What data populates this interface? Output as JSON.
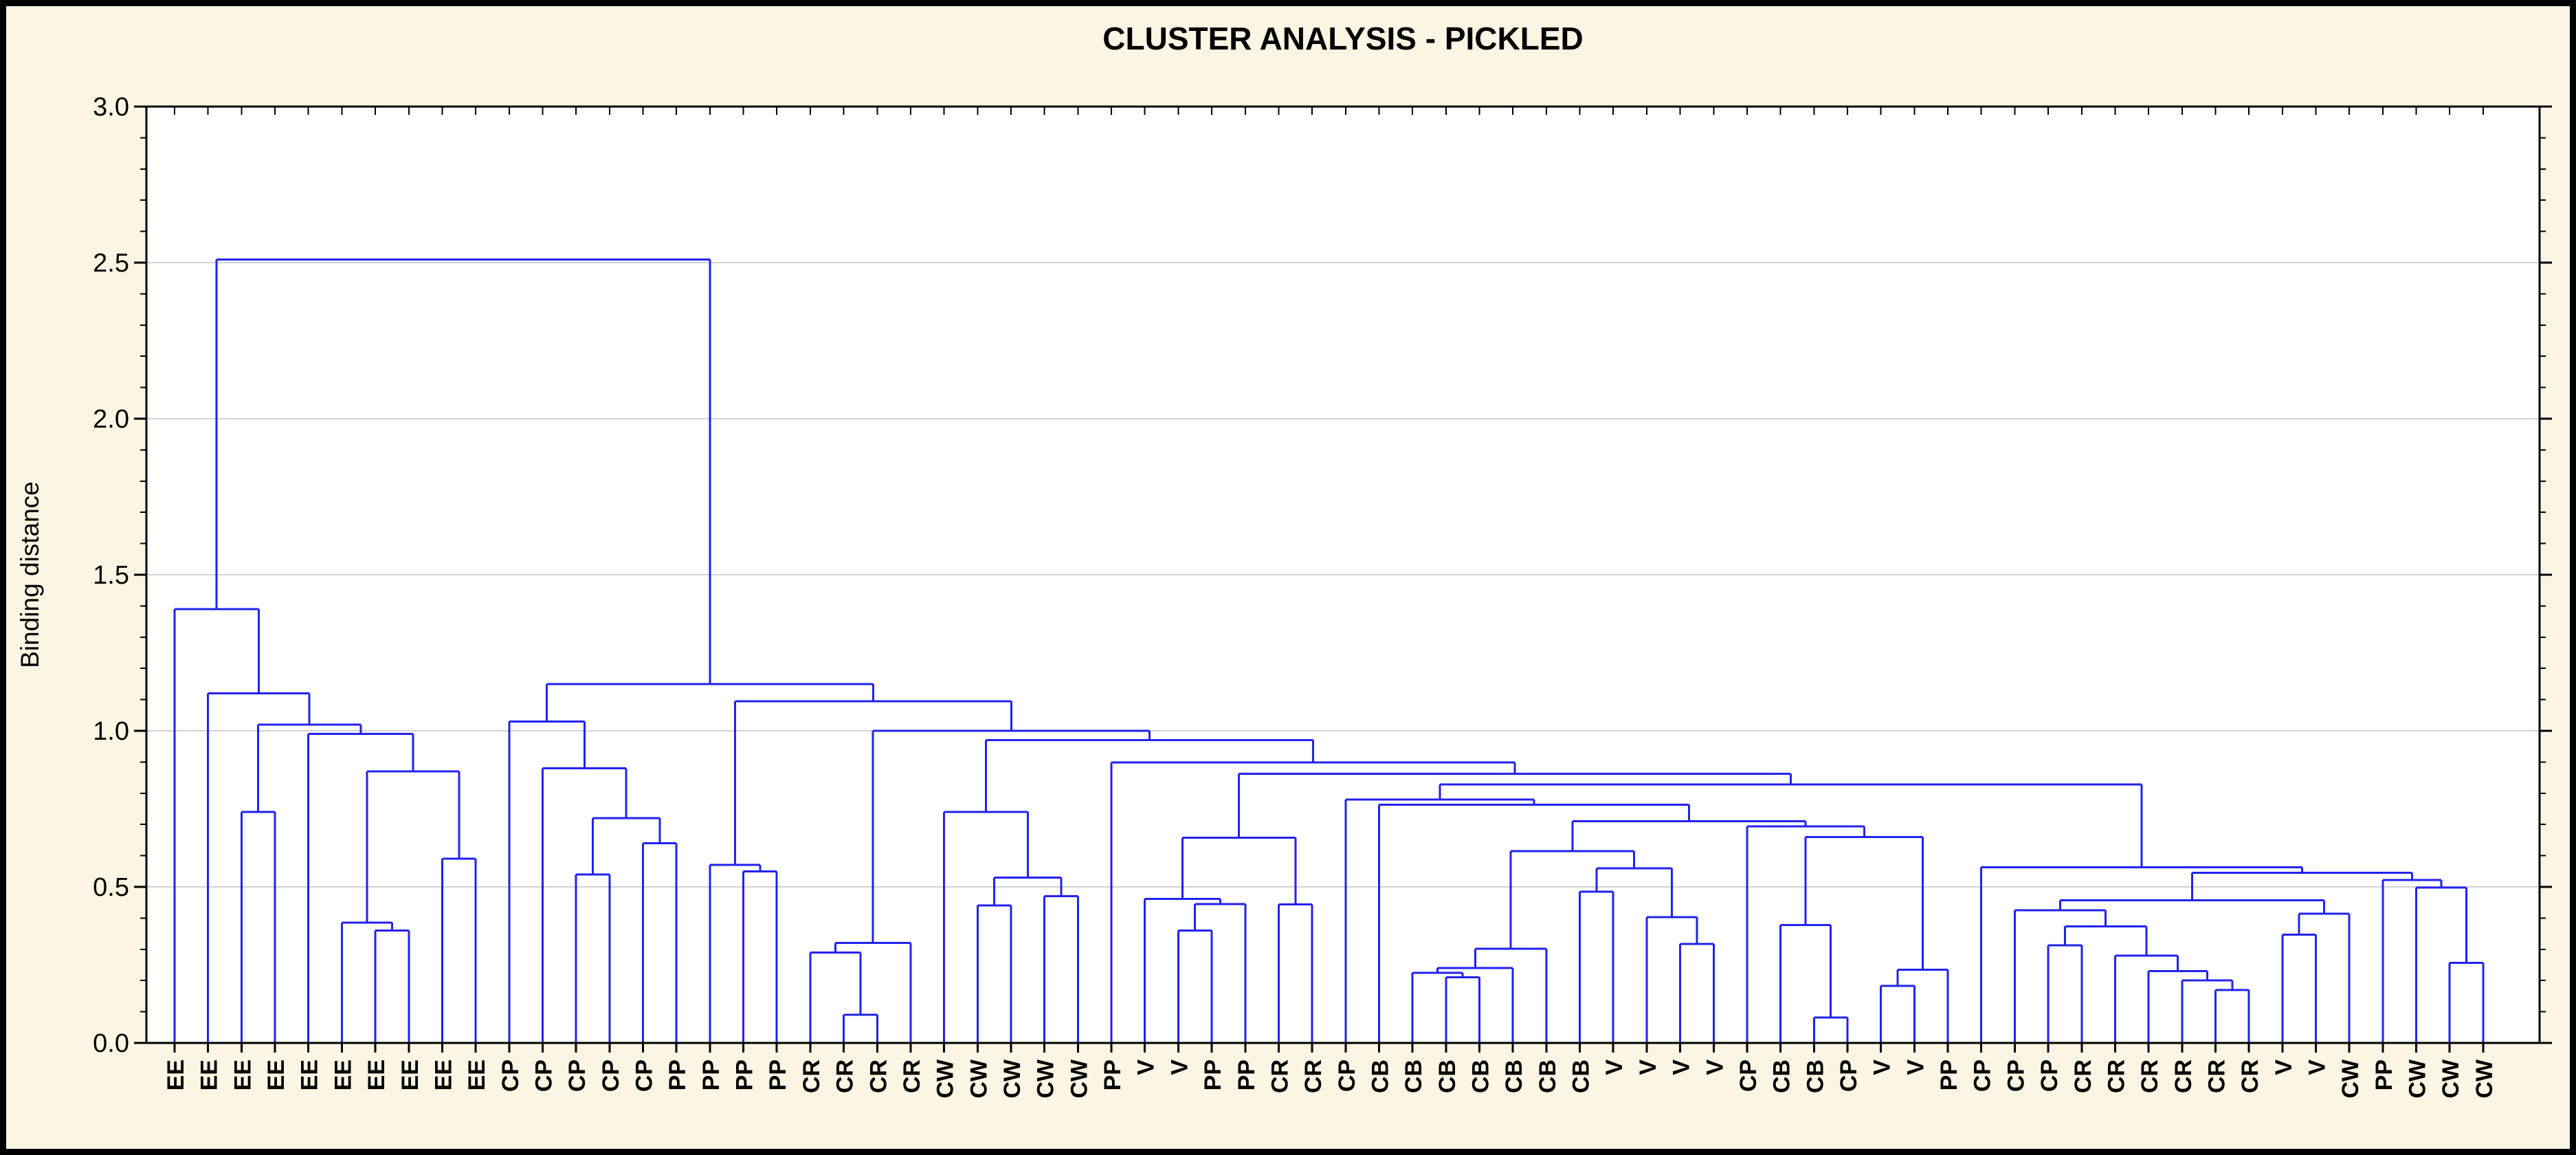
{
  "chart_data": {
    "type": "dendrogram",
    "title": "CLUSTER ANALYSIS - PICKLED",
    "ylabel": "Binding distance",
    "ylim": [
      0.0,
      3.0
    ],
    "yticks_major": [
      0.0,
      0.5,
      1.0,
      1.5,
      2.0,
      2.5,
      3.0
    ],
    "ytick_labels": [
      "0.0",
      "0.5",
      "1.0",
      "1.5",
      "2.0",
      "2.5",
      "3.0"
    ],
    "minor_tick_step": 0.1,
    "grid_values": [
      0.5,
      1.0,
      1.5,
      2.0,
      2.5
    ],
    "grid_on": true,
    "legend": "none",
    "leaves": [
      "EE",
      "EE",
      "EE",
      "EE",
      "EE",
      "EE",
      "EE",
      "EE",
      "EE",
      "EE",
      "CP",
      "CP",
      "CP",
      "CP",
      "CP",
      "PP",
      "PP",
      "PP",
      "PP",
      "CR",
      "CR",
      "CR",
      "CR",
      "CW",
      "CW",
      "CW",
      "CW",
      "CW",
      "PP",
      "V",
      "V",
      "PP",
      "PP",
      "CR",
      "CR",
      "CP",
      "CB",
      "CB",
      "CB",
      "CB",
      "CB",
      "CB",
      "CB",
      "V",
      "V",
      "V",
      "V",
      "CP",
      "CB",
      "CB",
      "CP",
      "V",
      "V",
      "PP",
      "CP",
      "CP",
      "CP",
      "CR",
      "CR",
      "CR",
      "CR",
      "CR",
      "CR",
      "V",
      "V",
      "CW",
      "PP",
      "CW",
      "CW",
      "CW"
    ],
    "root_height": 2.51,
    "tree": {
      "h": 2.51,
      "c": [
        {
          "h": 1.39,
          "c": [
            0,
            {
              "h": 1.12,
              "c": [
                1,
                {
                  "h": 1.02,
                  "c": [
                    {
                      "h": 0.74,
                      "c": [
                        2,
                        3
                      ]
                    },
                    {
                      "h": 0.99,
                      "c": [
                        4,
                        {
                          "h": 0.87,
                          "c": [
                            {
                              "h": 0.385,
                              "c": [
                                5,
                                {
                                  "h": 0.36,
                                  "c": [
                                    6,
                                    7
                                  ]
                                }
                              ]
                            },
                            {
                              "h": 0.59,
                              "c": [
                                8,
                                9
                              ]
                            }
                          ]
                        }
                      ]
                    }
                  ]
                }
              ]
            }
          ]
        },
        {
          "h": 1.15,
          "c": [
            {
              "h": 1.03,
              "c": [
                10,
                {
                  "h": 0.88,
                  "c": [
                    11,
                    {
                      "h": 0.72,
                      "c": [
                        {
                          "h": 0.54,
                          "c": [
                            12,
                            13
                          ]
                        },
                        {
                          "h": 0.64,
                          "c": [
                            14,
                            15
                          ]
                        }
                      ]
                    }
                  ]
                }
              ]
            },
            {
              "h": 1.095,
              "c": [
                {
                  "h": 0.57,
                  "c": [
                    16,
                    {
                      "h": 0.55,
                      "c": [
                        17,
                        18
                      ]
                    }
                  ]
                },
                {
                  "h": 1.0,
                  "c": [
                    {
                      "h": 0.32,
                      "c": [
                        {
                          "h": 0.29,
                          "c": [
                            19,
                            {
                              "h": 0.09,
                              "c": [
                                20,
                                21
                              ]
                            }
                          ]
                        },
                        22
                      ]
                    },
                    {
                      "h": 0.97,
                      "c": [
                        {
                          "h": 0.74,
                          "c": [
                            23,
                            {
                              "h": 0.53,
                              "c": [
                                {
                                  "h": 0.44,
                                  "c": [
                                    24,
                                    25
                                  ]
                                },
                                {
                                  "h": 0.47,
                                  "c": [
                                    26,
                                    27
                                  ]
                                }
                              ]
                            }
                          ]
                        },
                        {
                          "h": 0.899,
                          "c": [
                            28,
                            {
                              "h": 0.862,
                              "c": [
                                {
                                  "h": 0.657,
                                  "c": [
                                    {
                                      "h": 0.462,
                                      "c": [
                                        29,
                                        {
                                          "h": 0.445,
                                          "c": [
                                            {
                                              "h": 0.36,
                                              "c": [
                                                30,
                                                31
                                              ]
                                            },
                                            32
                                          ]
                                        }
                                      ]
                                    },
                                    {
                                      "h": 0.444,
                                      "c": [
                                        33,
                                        34
                                      ]
                                    }
                                  ]
                                },
                                {
                                  "h": 0.828,
                                  "c": [
                                    {
                                      "h": 0.78,
                                      "c": [
                                        35,
                                        {
                                          "h": 0.763,
                                          "c": [
                                            36,
                                            {
                                              "h": 0.71,
                                              "c": [
                                                {
                                                  "h": 0.615,
                                                  "c": [
                                                    {
                                                      "h": 0.302,
                                                      "c": [
                                                        {
                                                          "h": 0.24,
                                                          "c": [
                                                            {
                                                              "h": 0.225,
                                                              "c": [
                                                                37,
                                                                {
                                                                  "h": 0.21,
                                                                  "c": [
                                                                    38,
                                                                    39
                                                                  ]
                                                                }
                                                              ]
                                                            },
                                                            40
                                                          ]
                                                        },
                                                        41
                                                      ]
                                                    },
                                                    {
                                                      "h": 0.56,
                                                      "c": [
                                                        {
                                                          "h": 0.485,
                                                          "c": [
                                                            42,
                                                            43
                                                          ]
                                                        },
                                                        {
                                                          "h": 0.403,
                                                          "c": [
                                                            44,
                                                            {
                                                              "h": 0.317,
                                                              "c": [
                                                                45,
                                                                46
                                                              ]
                                                            }
                                                          ]
                                                        }
                                                      ]
                                                    }
                                                  ]
                                                },
                                                {
                                                  "h": 0.694,
                                                  "c": [
                                                    47,
                                                    {
                                                      "h": 0.66,
                                                      "c": [
                                                        {
                                                          "h": 0.378,
                                                          "c": [
                                                            48,
                                                            {
                                                              "h": 0.082,
                                                              "c": [
                                                                49,
                                                                50
                                                              ]
                                                            }
                                                          ]
                                                        },
                                                        {
                                                          "h": 0.235,
                                                          "c": [
                                                            {
                                                              "h": 0.183,
                                                              "c": [
                                                                51,
                                                                52
                                                              ]
                                                            },
                                                            53
                                                          ]
                                                        }
                                                      ]
                                                    }
                                                  ]
                                                }
                                              ]
                                            }
                                          ]
                                        }
                                      ]
                                    },
                                    {
                                      "h": 0.563,
                                      "c": [
                                        54,
                                        {
                                          "h": 0.545,
                                          "c": [
                                            {
                                              "h": 0.457,
                                              "c": [
                                                {
                                                  "h": 0.425,
                                                  "c": [
                                                    55,
                                                    {
                                                      "h": 0.373,
                                                      "c": [
                                                        {
                                                          "h": 0.313,
                                                          "c": [
                                                            56,
                                                            57
                                                          ]
                                                        },
                                                        {
                                                          "h": 0.28,
                                                          "c": [
                                                            58,
                                                            {
                                                              "h": 0.23,
                                                              "c": [
                                                                59,
                                                                {
                                                                  "h": 0.2,
                                                                  "c": [
                                                                    60,
                                                                    {
                                                                      "h": 0.17,
                                                                      "c": [
                                                                        61,
                                                                        62
                                                                      ]
                                                                    }
                                                                  ]
                                                                }
                                                              ]
                                                            }
                                                          ]
                                                        }
                                                      ]
                                                    }
                                                  ]
                                                },
                                                {
                                                  "h": 0.414,
                                                  "c": [
                                                    {
                                                      "h": 0.347,
                                                      "c": [
                                                        63,
                                                        64
                                                      ]
                                                    },
                                                    65
                                                  ]
                                                }
                                              ]
                                            },
                                            {
                                              "h": 0.522,
                                              "c": [
                                                66,
                                                {
                                                  "h": 0.498,
                                                  "c": [
                                                    67,
                                                    {
                                                      "h": 0.257,
                                                      "c": [
                                                        68,
                                                        69
                                                      ]
                                                    }
                                                  ]
                                                }
                                              ]
                                            }
                                          ]
                                        }
                                      ]
                                    }
                                  ]
                                }
                              ]
                            }
                          ]
                        }
                      ]
                    }
                  ]
                }
              ]
            }
          ]
        }
      ]
    },
    "colors": {
      "line": "#2222ee",
      "background": "#fcf5e4",
      "plot_background": "#ffffff",
      "grid": "#d2d2d2",
      "frame": "#000000",
      "text": "#000000"
    }
  }
}
